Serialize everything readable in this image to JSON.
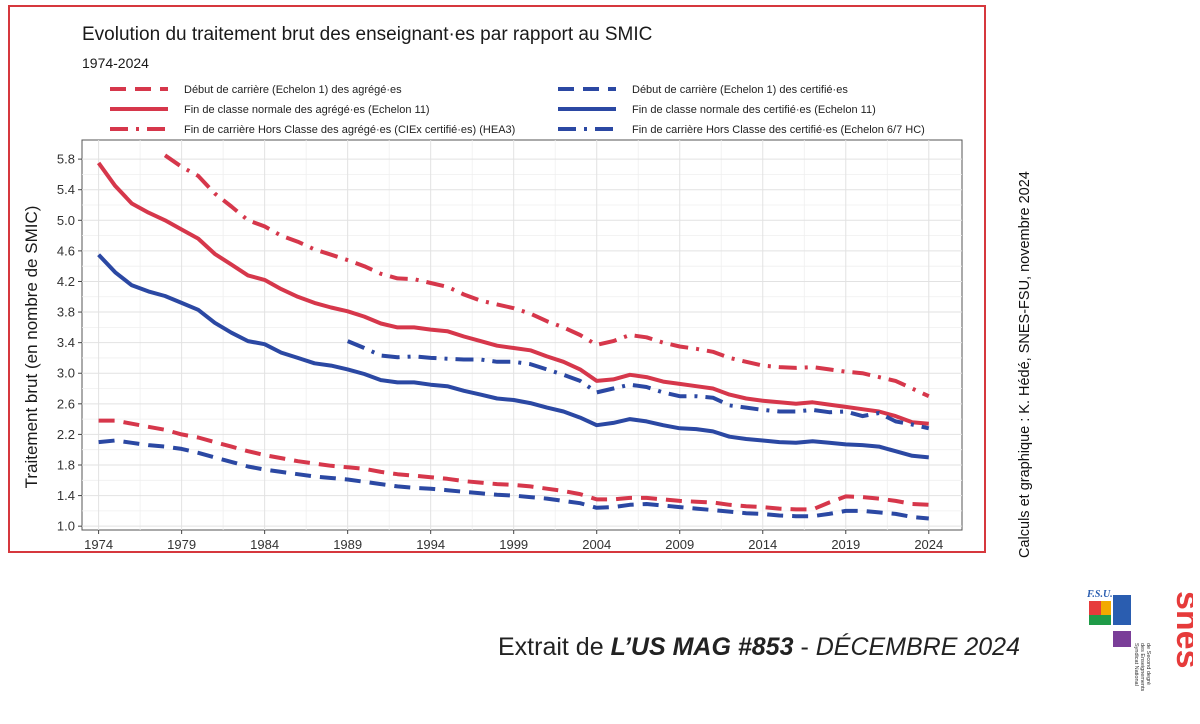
{
  "chart_data": {
    "type": "line",
    "title": "Evolution du traitement brut des enseignant·es par rapport au SMIC",
    "subtitle": "1974-2024",
    "xlabel": "",
    "ylabel": "Traitement brut (en nombre de SMIC)",
    "xlim": [
      1973,
      2026
    ],
    "ylim": [
      0.95,
      6.05
    ],
    "xticks": [
      "1974",
      "1979",
      "1984",
      "1989",
      "1994",
      "1999",
      "2004",
      "2009",
      "2014",
      "2019",
      "2024"
    ],
    "yticks": [
      "1.0",
      "1.4",
      "1.8",
      "2.2",
      "2.6",
      "3.0",
      "3.4",
      "3.8",
      "4.2",
      "4.6",
      "5.0",
      "5.4",
      "5.8"
    ],
    "grid": true,
    "legend_position": "top",
    "series": [
      {
        "name": "Début de carrière (Echelon 1) des agrégé·es",
        "color": "#d6374b",
        "style": "dashed",
        "x": [
          1974,
          1975,
          1976,
          1977,
          1978,
          1979,
          1980,
          1981,
          1982,
          1983,
          1984,
          1985,
          1986,
          1987,
          1988,
          1989,
          1990,
          1991,
          1992,
          1993,
          1994,
          1995,
          1996,
          1997,
          1998,
          1999,
          2000,
          2001,
          2002,
          2003,
          2004,
          2005,
          2006,
          2007,
          2008,
          2009,
          2010,
          2011,
          2012,
          2013,
          2014,
          2015,
          2016,
          2017,
          2018,
          2019,
          2020,
          2021,
          2022,
          2023,
          2024
        ],
        "values": [
          2.38,
          2.38,
          2.34,
          2.3,
          2.26,
          2.2,
          2.16,
          2.1,
          2.04,
          1.98,
          1.93,
          1.89,
          1.85,
          1.82,
          1.79,
          1.77,
          1.75,
          1.71,
          1.68,
          1.66,
          1.64,
          1.62,
          1.59,
          1.57,
          1.55,
          1.54,
          1.52,
          1.49,
          1.46,
          1.42,
          1.35,
          1.35,
          1.37,
          1.37,
          1.35,
          1.33,
          1.32,
          1.31,
          1.28,
          1.26,
          1.25,
          1.23,
          1.22,
          1.22,
          1.31,
          1.39,
          1.38,
          1.36,
          1.33,
          1.29,
          1.28
        ]
      },
      {
        "name": "Début de carrière (Echelon 1) des certifié·es",
        "color": "#2b48a3",
        "style": "dashed",
        "x": [
          1974,
          1975,
          1976,
          1977,
          1978,
          1979,
          1980,
          1981,
          1982,
          1983,
          1984,
          1985,
          1986,
          1987,
          1988,
          1989,
          1990,
          1991,
          1992,
          1993,
          1994,
          1995,
          1996,
          1997,
          1998,
          1999,
          2000,
          2001,
          2002,
          2003,
          2004,
          2005,
          2006,
          2007,
          2008,
          2009,
          2010,
          2011,
          2012,
          2013,
          2014,
          2015,
          2016,
          2017,
          2018,
          2019,
          2020,
          2021,
          2022,
          2023,
          2024
        ],
        "values": [
          2.1,
          2.12,
          2.09,
          2.06,
          2.04,
          2.01,
          1.96,
          1.9,
          1.84,
          1.78,
          1.74,
          1.71,
          1.68,
          1.65,
          1.63,
          1.61,
          1.58,
          1.55,
          1.52,
          1.5,
          1.49,
          1.47,
          1.45,
          1.43,
          1.41,
          1.4,
          1.38,
          1.36,
          1.33,
          1.3,
          1.24,
          1.25,
          1.28,
          1.29,
          1.27,
          1.25,
          1.23,
          1.21,
          1.19,
          1.17,
          1.16,
          1.14,
          1.13,
          1.13,
          1.16,
          1.2,
          1.2,
          1.18,
          1.16,
          1.12,
          1.1
        ]
      },
      {
        "name": "Fin de classe normale des agrégé·es (Echelon 11)",
        "color": "#d6374b",
        "style": "solid",
        "x": [
          1974,
          1975,
          1976,
          1977,
          1978,
          1979,
          1980,
          1981,
          1982,
          1983,
          1984,
          1985,
          1986,
          1987,
          1988,
          1989,
          1990,
          1991,
          1992,
          1993,
          1994,
          1995,
          1996,
          1997,
          1998,
          1999,
          2000,
          2001,
          2002,
          2003,
          2004,
          2005,
          2006,
          2007,
          2008,
          2009,
          2010,
          2011,
          2012,
          2013,
          2014,
          2015,
          2016,
          2017,
          2018,
          2019,
          2020,
          2021,
          2022,
          2023,
          2024
        ],
        "values": [
          5.75,
          5.45,
          5.22,
          5.1,
          5.0,
          4.88,
          4.76,
          4.56,
          4.42,
          4.28,
          4.22,
          4.1,
          4.0,
          3.92,
          3.86,
          3.81,
          3.74,
          3.65,
          3.6,
          3.6,
          3.57,
          3.55,
          3.48,
          3.42,
          3.36,
          3.33,
          3.3,
          3.22,
          3.15,
          3.05,
          2.9,
          2.92,
          2.98,
          2.95,
          2.89,
          2.86,
          2.83,
          2.8,
          2.72,
          2.67,
          2.64,
          2.62,
          2.6,
          2.62,
          2.59,
          2.56,
          2.53,
          2.5,
          2.44,
          2.36,
          2.34
        ]
      },
      {
        "name": "Fin de classe normale des certifié·es (Echelon 11)",
        "color": "#2b48a3",
        "style": "solid",
        "x": [
          1974,
          1975,
          1976,
          1977,
          1978,
          1979,
          1980,
          1981,
          1982,
          1983,
          1984,
          1985,
          1986,
          1987,
          1988,
          1989,
          1990,
          1991,
          1992,
          1993,
          1994,
          1995,
          1996,
          1997,
          1998,
          1999,
          2000,
          2001,
          2002,
          2003,
          2004,
          2005,
          2006,
          2007,
          2008,
          2009,
          2010,
          2011,
          2012,
          2013,
          2014,
          2015,
          2016,
          2017,
          2018,
          2019,
          2020,
          2021,
          2022,
          2023,
          2024
        ],
        "values": [
          4.55,
          4.32,
          4.15,
          4.07,
          4.01,
          3.92,
          3.83,
          3.66,
          3.53,
          3.42,
          3.38,
          3.27,
          3.2,
          3.13,
          3.1,
          3.05,
          2.99,
          2.91,
          2.88,
          2.88,
          2.85,
          2.83,
          2.77,
          2.72,
          2.67,
          2.65,
          2.61,
          2.55,
          2.5,
          2.42,
          2.32,
          2.35,
          2.4,
          2.37,
          2.32,
          2.28,
          2.27,
          2.24,
          2.17,
          2.14,
          2.12,
          2.1,
          2.09,
          2.11,
          2.09,
          2.07,
          2.06,
          2.04,
          1.98,
          1.92,
          1.9
        ]
      },
      {
        "name": "Fin de carrière Hors Classe des agrégé·es (CIEx certifié·es) (HEA3)",
        "color": "#d6374b",
        "style": "dashdot",
        "x": [
          1978,
          1979,
          1980,
          1981,
          1982,
          1983,
          1984,
          1985,
          1986,
          1987,
          1988,
          1989,
          1990,
          1991,
          1992,
          1993,
          1994,
          1995,
          1996,
          1997,
          1998,
          1999,
          2000,
          2001,
          2002,
          2003,
          2004,
          2005,
          2006,
          2007,
          2008,
          2009,
          2010,
          2011,
          2012,
          2013,
          2014,
          2015,
          2016,
          2017,
          2018,
          2019,
          2020,
          2021,
          2022,
          2023,
          2024
        ],
        "values": [
          5.85,
          5.7,
          5.58,
          5.35,
          5.18,
          5.0,
          4.92,
          4.8,
          4.72,
          4.62,
          4.55,
          4.48,
          4.4,
          4.3,
          4.24,
          4.23,
          4.18,
          4.13,
          4.03,
          3.95,
          3.9,
          3.85,
          3.78,
          3.68,
          3.6,
          3.5,
          3.37,
          3.42,
          3.5,
          3.47,
          3.4,
          3.35,
          3.32,
          3.28,
          3.2,
          3.15,
          3.1,
          3.08,
          3.07,
          3.08,
          3.05,
          3.02,
          3.0,
          2.95,
          2.9,
          2.8,
          2.7
        ]
      },
      {
        "name": "Fin de carrière Hors Classe des certifié·es (Echelon 6/7 HC)",
        "color": "#2b48a3",
        "style": "dashdot",
        "x": [
          1989,
          1990,
          1991,
          1992,
          1993,
          1994,
          1995,
          1996,
          1997,
          1998,
          1999,
          2000,
          2001,
          2002,
          2003,
          2004,
          2005,
          2006,
          2007,
          2008,
          2009,
          2010,
          2011,
          2012,
          2013,
          2014,
          2015,
          2016,
          2017,
          2018,
          2019,
          2020,
          2021,
          2022,
          2023,
          2024
        ],
        "values": [
          3.42,
          3.33,
          3.23,
          3.21,
          3.22,
          3.2,
          3.19,
          3.18,
          3.18,
          3.15,
          3.15,
          3.12,
          3.05,
          2.98,
          2.9,
          2.75,
          2.8,
          2.85,
          2.82,
          2.75,
          2.7,
          2.7,
          2.68,
          2.58,
          2.55,
          2.52,
          2.5,
          2.5,
          2.52,
          2.49,
          2.5,
          2.44,
          2.48,
          2.37,
          2.33,
          2.28
        ]
      }
    ]
  },
  "credit": "Calculs et graphique : K. Hédé, SNES-FSU, novembre 2024",
  "source": {
    "prefix": "Extrait de ",
    "magazine": "L’US MAG #853",
    "separator": " - ",
    "date": "DÉCEMBRE 2024"
  },
  "logo": {
    "small_text": "F.S.U.",
    "letters": "snes",
    "caption_lines": [
      "Syndicat National",
      "des Enseignements",
      "de Second degré"
    ],
    "colors": [
      "#e63b3b",
      "#f2a900",
      "#1f9b48",
      "#2a5db0",
      "#7a3e98"
    ]
  }
}
